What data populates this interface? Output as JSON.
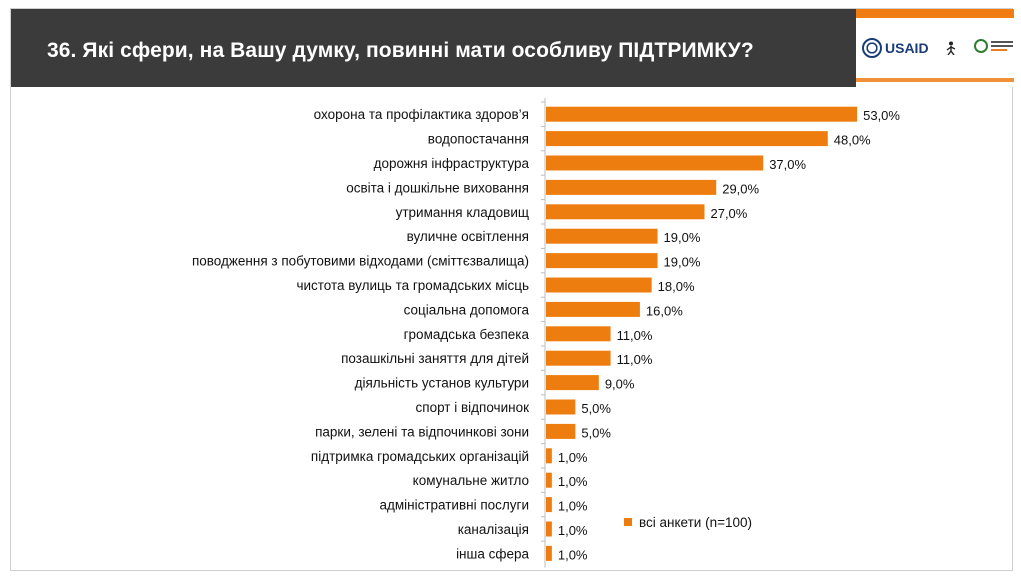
{
  "header": {
    "title": "36. Які сфери, на Вашу думку, повинні мати особливу ПІДТРИМКУ?"
  },
  "logos": {
    "usaid": "USAID",
    "brand_color": "#f07c12"
  },
  "chart_data": {
    "type": "bar",
    "orientation": "horizontal",
    "title": "",
    "xlabel": "",
    "ylabel": "",
    "xlim": [
      0,
      60
    ],
    "grid": false,
    "legend_position": "right",
    "bar_color": "#ee7d10",
    "categories": [
      "охорона та профілактика здоров’я",
      "водопостачання",
      "дорожня інфраструктура",
      "освіта і дошкільне виховання",
      "утримання кладовищ",
      "вуличне освітлення",
      "поводження з побутовими відходами (сміттєзвалища)",
      "чистота вулиць та громадських місць",
      "соціальна допомога",
      "громадська безпека",
      "позашкільні заняття для дітей",
      "діяльність установ культури",
      "спорт і відпочинок",
      "парки, зелені та відпочинкові зони",
      "підтримка громадських організацій",
      "комунальне житло",
      "адміністративні послуги",
      "каналізація",
      "інша сфера"
    ],
    "series": [
      {
        "name": "всі анкети (n=100)",
        "values": [
          53,
          48,
          37,
          29,
          27,
          19,
          19,
          18,
          16,
          11,
          11,
          9,
          5,
          5,
          1,
          1,
          1,
          1,
          1
        ],
        "labels": [
          "53,0%",
          "48,0%",
          "37,0%",
          "29,0%",
          "27,0%",
          "19,0%",
          "19,0%",
          "18,0%",
          "16,0%",
          "11,0%",
          "11,0%",
          "9,0%",
          "5,0%",
          "5,0%",
          "1,0%",
          "1,0%",
          "1,0%",
          "1,0%",
          "1,0%"
        ]
      }
    ]
  }
}
